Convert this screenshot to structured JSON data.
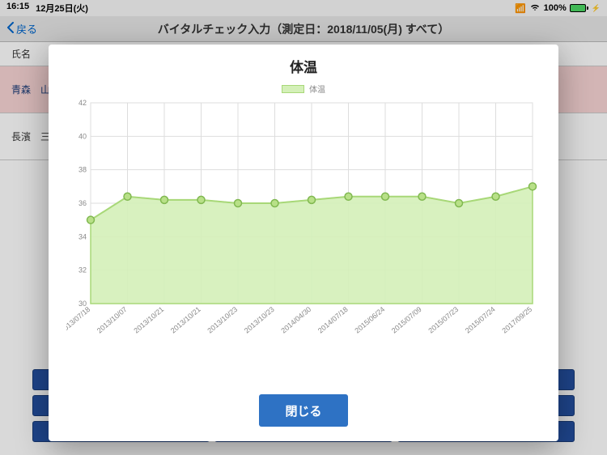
{
  "status_bar": {
    "time": "16:15",
    "date": "12月25日(火)",
    "signal": "▪▪▪▪",
    "wifi": true,
    "battery_pct": "100%",
    "charging": true
  },
  "nav": {
    "back_label": "戻る",
    "title_prefix": "バイタルチェック入力（測定日：",
    "title_date": "2018/11/05(月)",
    "title_suffix": " すべて）"
  },
  "bg": {
    "header_name_col": "氏名",
    "rows": [
      {
        "name": "青森　山田",
        "shade": "pink"
      },
      {
        "name": "長濱　三郎",
        "shade": "plain"
      }
    ],
    "button_rows": [
      [
        "",
        "",
        ""
      ],
      [
        "血",
        "",
        "…"
      ],
      [
        "",
        "",
        ""
      ]
    ]
  },
  "modal": {
    "title": "体温",
    "close_label": "閉じる",
    "chart": {
      "type": "area",
      "legend_label": "体温",
      "ylim": [
        30,
        42
      ],
      "ytick_step": 2,
      "series_color": "#d4f0b8",
      "series_border": "#a8d878",
      "point_fill": "#b8e088",
      "point_stroke": "#80b850",
      "grid_color": "#dddddd",
      "axis_color": "#dddddd",
      "text_color": "#888888",
      "background_color": "#ffffff",
      "label_fontsize": 9,
      "x_labels": [
        "2013/07/18",
        "2013/10/07",
        "2013/10/21",
        "2013/10/21",
        "2013/10/23",
        "2013/10/23",
        "2014/04/30",
        "2014/07/18",
        "2015/06/24",
        "2015/07/09",
        "2015/07/23",
        "2015/07/24",
        "2017/09/25"
      ],
      "values": [
        35.0,
        36.4,
        36.2,
        36.2,
        36.0,
        36.0,
        36.2,
        36.4,
        36.4,
        36.4,
        36.0,
        36.4,
        37.0
      ]
    }
  }
}
